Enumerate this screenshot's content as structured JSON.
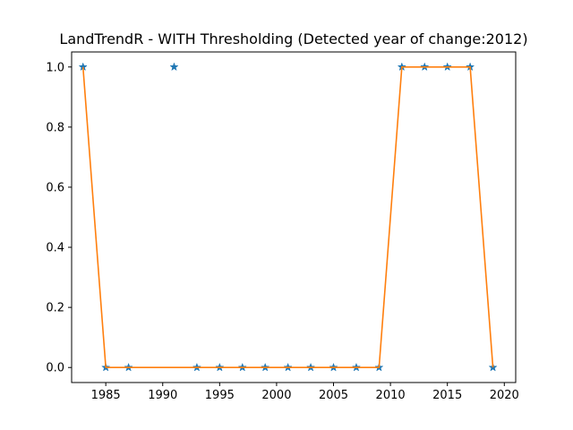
{
  "chart_data": {
    "type": "line",
    "title": "LandTrendR - WITH Thresholding (Detected year of change:2012)",
    "xlabel": "",
    "ylabel": "",
    "xlim": [
      1982,
      2021
    ],
    "ylim": [
      -0.05,
      1.05
    ],
    "x_ticks": [
      1985,
      1990,
      1995,
      2000,
      2005,
      2010,
      2015,
      2020
    ],
    "y_ticks": [
      0.0,
      0.2,
      0.4,
      0.6,
      0.8,
      1.0
    ],
    "y_tick_labels": [
      "0.0",
      "0.2",
      "0.4",
      "0.6",
      "0.8",
      "1.0"
    ],
    "grid": false,
    "series": [
      {
        "marker": "star",
        "color": "#1f77b4",
        "points": [
          {
            "x": 1983,
            "y": 1.0
          },
          {
            "x": 1985,
            "y": 0.0
          },
          {
            "x": 1987,
            "y": 0.0
          },
          {
            "x": 1991,
            "y": 1.0
          },
          {
            "x": 1993,
            "y": 0.0
          },
          {
            "x": 1995,
            "y": 0.0
          },
          {
            "x": 1997,
            "y": 0.0
          },
          {
            "x": 1999,
            "y": 0.0
          },
          {
            "x": 2001,
            "y": 0.0
          },
          {
            "x": 2003,
            "y": 0.0
          },
          {
            "x": 2005,
            "y": 0.0
          },
          {
            "x": 2007,
            "y": 0.0
          },
          {
            "x": 2009,
            "y": 0.0
          },
          {
            "x": 2011,
            "y": 1.0
          },
          {
            "x": 2013,
            "y": 1.0
          },
          {
            "x": 2015,
            "y": 1.0
          },
          {
            "x": 2017,
            "y": 1.0
          },
          {
            "x": 2019,
            "y": 0.0
          }
        ]
      },
      {
        "marker": "line",
        "color": "#ff7f0e",
        "points": [
          {
            "x": 1983,
            "y": 1.0
          },
          {
            "x": 1985,
            "y": 0.0
          },
          {
            "x": 2009,
            "y": 0.0
          },
          {
            "x": 2011,
            "y": 1.0
          },
          {
            "x": 2017,
            "y": 1.0
          },
          {
            "x": 2019,
            "y": 0.0
          }
        ]
      }
    ]
  }
}
